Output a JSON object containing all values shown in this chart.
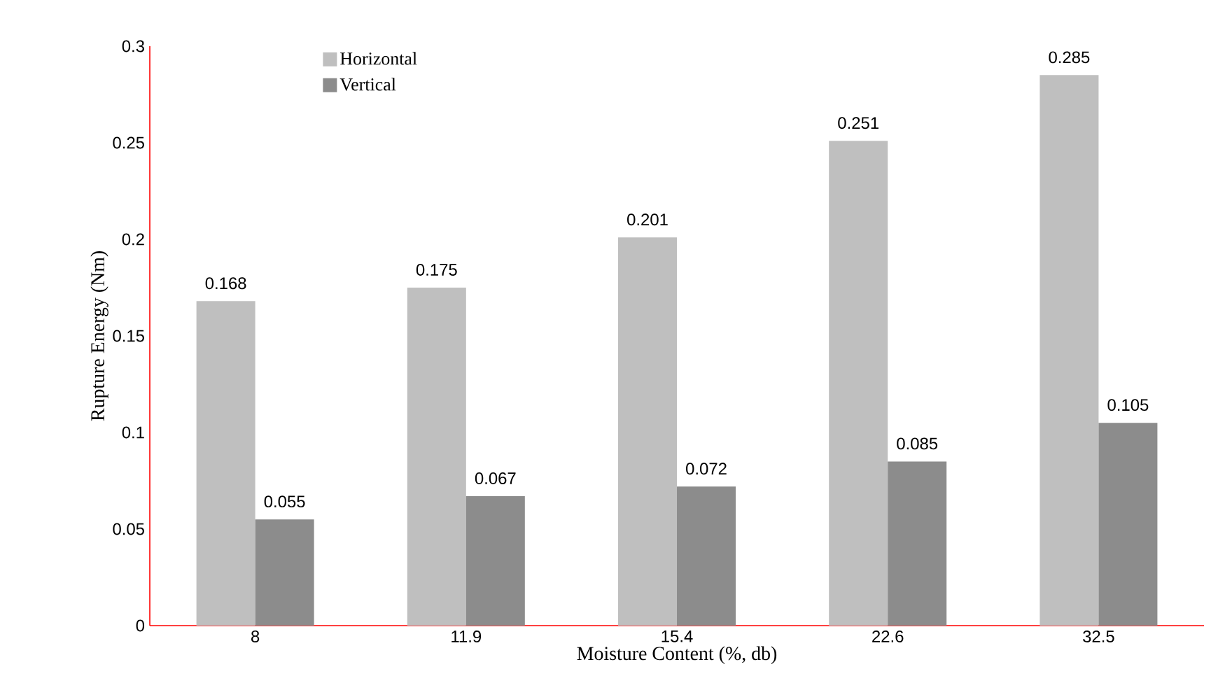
{
  "chart_data": {
    "type": "bar",
    "xlabel": "Moisture Content (%, db)",
    "ylabel": "Rupture Energy (Nm)",
    "categories": [
      "8",
      "11.9",
      "15.4",
      "22.6",
      "32.5"
    ],
    "series": [
      {
        "name": "Horizontal",
        "color": "#bfbfbf",
        "values": [
          0.168,
          0.175,
          0.201,
          0.251,
          0.285
        ]
      },
      {
        "name": "Vertical",
        "color": "#8c8c8c",
        "values": [
          0.055,
          0.067,
          0.072,
          0.085,
          0.105
        ]
      }
    ],
    "ylim": [
      0,
      0.3
    ],
    "yticks": [
      0,
      0.05,
      0.1,
      0.15,
      0.2,
      0.25,
      0.3
    ],
    "data_labels": true,
    "legend": "top left",
    "grid": false
  }
}
